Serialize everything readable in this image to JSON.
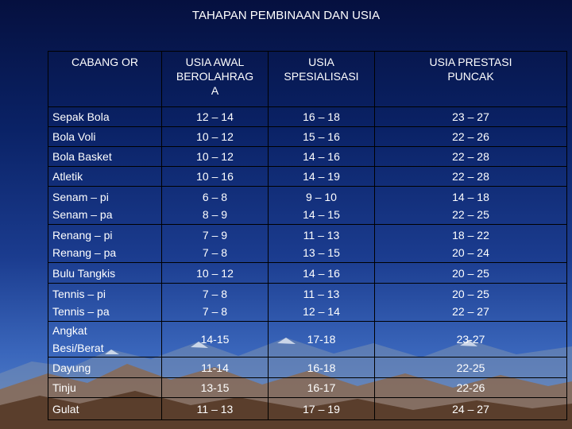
{
  "title": "TAHAPAN PEMBINAAN DAN USIA",
  "columns": [
    "CABANG OR",
    "USIA AWAL BEROLAHRAG A",
    "USIA SPESIALISASI",
    "USIA PRESTASI PUNCAK"
  ],
  "header_lines": [
    [
      "CABANG OR"
    ],
    [
      "USIA AWAL",
      "BEROLAHRAG",
      "A"
    ],
    [
      "USIA",
      "SPESIALISASI"
    ],
    [
      "USIA PRESTASI",
      "PUNCAK"
    ]
  ],
  "rows": [
    {
      "sport": [
        "Sepak Bola"
      ],
      "awal": [
        "12 – 14"
      ],
      "spesialisasi": [
        "16 – 18"
      ],
      "puncak": [
        "23 – 27"
      ]
    },
    {
      "sport": [
        "Bola Voli"
      ],
      "awal": [
        "10 – 12"
      ],
      "spesialisasi": [
        "15 – 16"
      ],
      "puncak": [
        "22 – 26"
      ]
    },
    {
      "sport": [
        "Bola Basket"
      ],
      "awal": [
        "10 – 12"
      ],
      "spesialisasi": [
        "14 – 16"
      ],
      "puncak": [
        "22 – 28"
      ]
    },
    {
      "sport": [
        "Atletik"
      ],
      "awal": [
        "10 – 16"
      ],
      "spesialisasi": [
        "14 – 19"
      ],
      "puncak": [
        "22 – 28"
      ]
    },
    {
      "sport": [
        "Senam – pi",
        "Senam – pa"
      ],
      "awal": [
        "6 – 8",
        "8 – 9"
      ],
      "spesialisasi": [
        "9 – 10",
        "14 – 15"
      ],
      "puncak": [
        "14 – 18",
        "22 – 25"
      ]
    },
    {
      "sport": [
        "Renang – pi",
        "Renang – pa"
      ],
      "awal": [
        "7 – 9",
        "7 – 8"
      ],
      "spesialisasi": [
        "11 – 13",
        "13 – 15"
      ],
      "puncak": [
        "18 – 22",
        "20 – 24"
      ]
    },
    {
      "sport": [
        "Bulu Tangkis"
      ],
      "awal": [
        "10 – 12"
      ],
      "spesialisasi": [
        "14 – 16"
      ],
      "puncak": [
        "20 – 25"
      ]
    },
    {
      "sport": [
        "Tennis – pi",
        "Tennis – pa"
      ],
      "awal": [
        "7 – 8",
        "7 – 8"
      ],
      "spesialisasi": [
        "11 – 13",
        "12 – 14"
      ],
      "puncak": [
        "20 – 25",
        "22 – 27"
      ]
    },
    {
      "sport": [
        "Angkat",
        "Besi/Berat"
      ],
      "awal": [
        "14-15"
      ],
      "spesialisasi": [
        "17-18"
      ],
      "puncak": [
        "23-27"
      ]
    },
    {
      "sport": [
        "Dayung"
      ],
      "awal": [
        "11-14"
      ],
      "spesialisasi": [
        "16-18"
      ],
      "puncak": [
        "22-25"
      ]
    },
    {
      "sport": [
        "Tinju"
      ],
      "awal": [
        "13-15"
      ],
      "spesialisasi": [
        "16-17"
      ],
      "puncak": [
        "22-26"
      ]
    },
    {
      "sport": [
        "Gulat"
      ],
      "awal": [
        "11 – 13"
      ],
      "spesialisasi": [
        "17 – 19"
      ],
      "puncak": [
        "24 – 27"
      ]
    }
  ],
  "colors": {
    "text": "#ffffff",
    "border": "#000000",
    "background_top": "#05103f",
    "background_bottom": "#5a88cf"
  }
}
